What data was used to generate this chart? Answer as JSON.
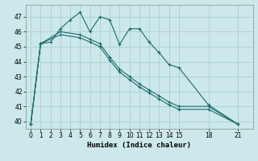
{
  "xlabel": "Humidex (Indice chaleur)",
  "bg_color": "#cce8ea",
  "grid_color": "#aad0d4",
  "line_color": "#1a6b6b",
  "xlim": [
    -0.5,
    22.5
  ],
  "ylim": [
    39.5,
    47.8
  ],
  "yticks": [
    40,
    41,
    42,
    43,
    44,
    45,
    46,
    47
  ],
  "xticks": [
    0,
    1,
    2,
    3,
    4,
    5,
    6,
    7,
    8,
    9,
    10,
    11,
    12,
    13,
    14,
    15,
    18,
    21
  ],
  "series1_x": [
    0,
    1,
    2,
    3,
    4,
    5,
    6,
    7,
    8,
    9,
    10,
    11,
    12,
    13,
    14,
    15,
    18,
    21
  ],
  "series1_y": [
    39.8,
    45.2,
    45.3,
    46.2,
    46.8,
    47.3,
    46.0,
    47.0,
    46.8,
    45.15,
    46.2,
    46.2,
    45.3,
    44.6,
    43.8,
    43.6,
    41.1,
    39.8
  ],
  "series2_x": [
    0,
    1,
    3,
    5,
    6,
    7,
    8,
    9,
    10,
    11,
    12,
    13,
    14,
    15,
    18,
    21
  ],
  "series2_y": [
    39.8,
    45.2,
    46.0,
    45.8,
    45.5,
    45.2,
    44.3,
    43.5,
    43.0,
    42.5,
    42.1,
    41.7,
    41.3,
    41.0,
    41.0,
    39.8
  ],
  "series3_x": [
    0,
    1,
    3,
    5,
    6,
    7,
    8,
    9,
    10,
    11,
    12,
    13,
    14,
    15,
    18,
    21
  ],
  "series3_y": [
    39.8,
    45.2,
    45.8,
    45.6,
    45.3,
    45.0,
    44.1,
    43.3,
    42.8,
    42.3,
    41.9,
    41.5,
    41.1,
    40.8,
    40.8,
    39.8
  ]
}
